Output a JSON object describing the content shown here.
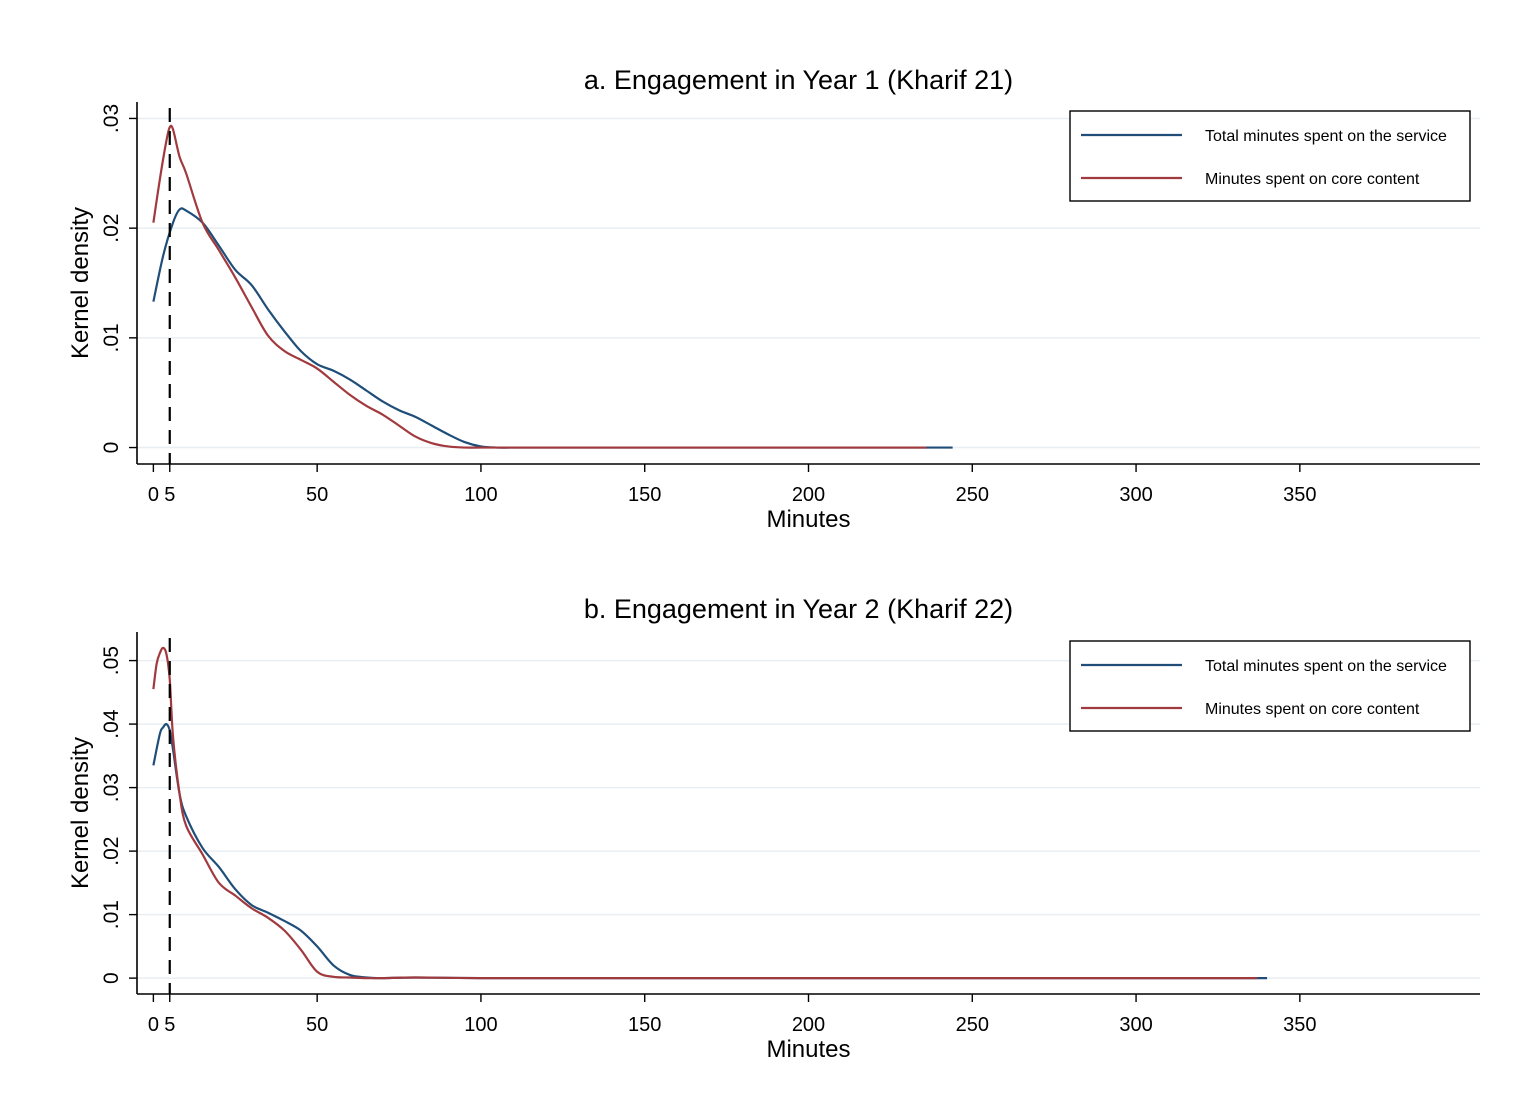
{
  "colors": {
    "series_total": "#1f4e79",
    "series_core": "#a13a3e",
    "gridline": "#e8eef2",
    "axis": "#000000",
    "reference_line": "#000000"
  },
  "chart_data": [
    {
      "type": "line",
      "title": "a. Engagement in Year 1 (Kharif 21)",
      "xlabel": "Minutes",
      "ylabel": "Kernel density",
      "xlim": [
        -5,
        405
      ],
      "ylim": [
        -0.0015,
        0.0315
      ],
      "xticks": [
        0,
        5,
        50,
        100,
        150,
        200,
        250,
        300,
        350
      ],
      "xtick_labels": [
        "0",
        "5",
        "50",
        "100",
        "150",
        "200",
        "250",
        "300",
        "350"
      ],
      "yticks": [
        0,
        0.01,
        0.02,
        0.03
      ],
      "ytick_labels": [
        "0",
        ".01",
        ".02",
        ".03"
      ],
      "grid": true,
      "reference_line_x": 5,
      "legend": {
        "position": "top-right",
        "entries": [
          "Total minutes spent on the service",
          "Minutes spent on core content"
        ]
      },
      "series": [
        {
          "name": "Total minutes spent on the service",
          "x": [
            0,
            3,
            6,
            8,
            10,
            15,
            20,
            25,
            30,
            35,
            40,
            45,
            50,
            55,
            60,
            65,
            70,
            75,
            80,
            85,
            90,
            95,
            100,
            105,
            110,
            120,
            150,
            200,
            244
          ],
          "y": [
            0.0133,
            0.0175,
            0.0205,
            0.0217,
            0.0216,
            0.0205,
            0.0184,
            0.0162,
            0.0148,
            0.0126,
            0.0106,
            0.0088,
            0.0076,
            0.007,
            0.0062,
            0.0052,
            0.0042,
            0.0034,
            0.0028,
            0.002,
            0.0012,
            0.0005,
            0.0001,
            0.0,
            0.0,
            0.0,
            0.0,
            0.0,
            0.0
          ]
        },
        {
          "name": "Minutes spent on core content",
          "x": [
            0,
            2,
            4,
            5,
            6,
            8,
            10,
            15,
            20,
            25,
            30,
            35,
            40,
            45,
            50,
            55,
            60,
            65,
            70,
            75,
            80,
            85,
            90,
            95,
            100,
            110,
            150,
            200,
            236
          ],
          "y": [
            0.0205,
            0.0245,
            0.028,
            0.0292,
            0.029,
            0.0265,
            0.025,
            0.0205,
            0.018,
            0.0155,
            0.0128,
            0.0102,
            0.0088,
            0.008,
            0.0072,
            0.006,
            0.0048,
            0.0038,
            0.003,
            0.002,
            0.001,
            0.0004,
            0.0001,
            0.0,
            0.0,
            0.0,
            0.0,
            0.0,
            0.0
          ]
        }
      ]
    },
    {
      "type": "line",
      "title": "b. Engagement in Year 2 (Kharif 22)",
      "xlabel": "Minutes",
      "ylabel": "Kernel density",
      "xlim": [
        -5,
        405
      ],
      "ylim": [
        -0.0025,
        0.0545
      ],
      "xticks": [
        0,
        5,
        50,
        100,
        150,
        200,
        250,
        300,
        350
      ],
      "xtick_labels": [
        "0",
        "5",
        "50",
        "100",
        "150",
        "200",
        "250",
        "300",
        "350"
      ],
      "yticks": [
        0,
        0.01,
        0.02,
        0.03,
        0.04,
        0.05
      ],
      "ytick_labels": [
        "0",
        ".01",
        ".02",
        ".03",
        ".04",
        ".05"
      ],
      "grid": true,
      "reference_line_x": 5,
      "legend": {
        "position": "top-right",
        "entries": [
          "Total minutes spent on the service",
          "Minutes spent on core content"
        ]
      },
      "series": [
        {
          "name": "Total minutes spent on the service",
          "x": [
            0,
            2,
            3,
            4,
            5,
            6,
            8,
            10,
            15,
            20,
            25,
            30,
            35,
            40,
            45,
            50,
            55,
            60,
            65,
            70,
            80,
            100,
            150,
            200,
            250,
            300,
            340
          ],
          "y": [
            0.0335,
            0.0385,
            0.0395,
            0.04,
            0.039,
            0.036,
            0.029,
            0.0255,
            0.0205,
            0.0175,
            0.014,
            0.0115,
            0.0103,
            0.009,
            0.0075,
            0.005,
            0.002,
            0.0005,
            0.0001,
            0.0,
            0.0001,
            0.0,
            0.0,
            0.0,
            0.0,
            0.0,
            0.0
          ]
        },
        {
          "name": "Minutes spent on core content",
          "x": [
            0,
            1,
            2,
            3,
            4,
            5,
            6,
            8,
            10,
            15,
            20,
            25,
            30,
            35,
            40,
            45,
            50,
            55,
            60,
            65,
            70,
            80,
            100,
            150,
            200,
            250,
            300,
            337
          ],
          "y": [
            0.0455,
            0.0495,
            0.0512,
            0.052,
            0.051,
            0.047,
            0.038,
            0.029,
            0.024,
            0.0195,
            0.015,
            0.013,
            0.011,
            0.0095,
            0.0075,
            0.0045,
            0.001,
            0.0002,
            0.0001,
            0.0,
            0.0,
            0.0001,
            0.0,
            0.0,
            0.0,
            0.0,
            0.0,
            0.0
          ]
        }
      ]
    }
  ]
}
